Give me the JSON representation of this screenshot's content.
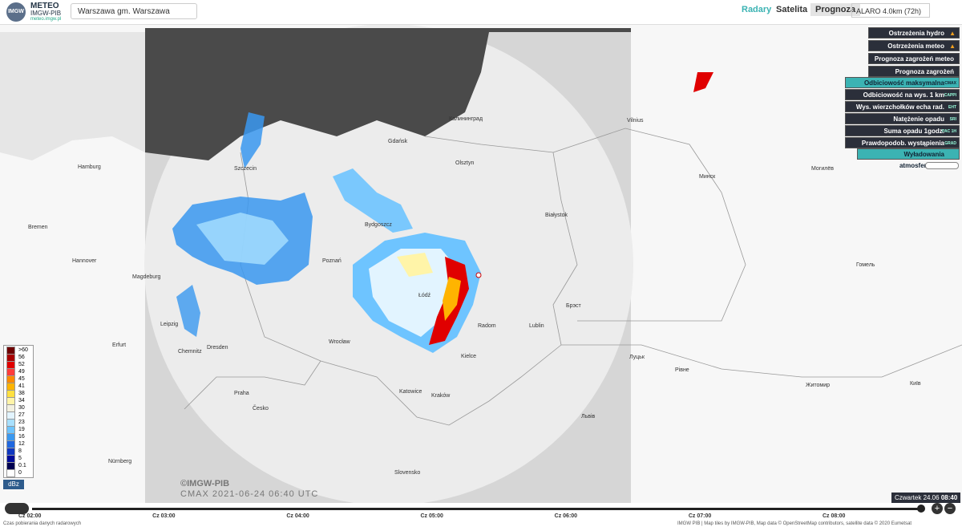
{
  "header": {
    "logo": "IMGW",
    "brand": "METEO",
    "org": "IMGW-PIB",
    "url": "meteo.imgw.pl",
    "search": "Warszawa gm. Warszawa",
    "nav": [
      "Radary",
      "Satelita",
      "Prognoza"
    ],
    "model": "ALARO 4.0km (72h)"
  },
  "warnings": [
    "Ostrzeżenia hydro",
    "Ostrzeżenia meteo",
    "Prognoza zagrożeń meteo",
    "Prognoza zagrożeń drogowych"
  ],
  "layers": [
    {
      "name": "Odbiciowość maksymalna",
      "code": "CMAX",
      "active": true
    },
    {
      "name": "Odbiciowość na wys. 1 km",
      "code": "CAPPI",
      "active": false
    },
    {
      "name": "Wys. wierzchołków echa rad.",
      "code": "EHT",
      "active": false
    },
    {
      "name": "Natężenie opadu",
      "code": "SRI",
      "active": false
    },
    {
      "name": "Suma opadu 1godz.",
      "code": "PAC 1H",
      "active": false
    },
    {
      "name": "Prawdopodob. wystąpienia gradu",
      "code": "GRAD",
      "active": false
    }
  ],
  "lightning": "Wyładowania atmosferyczne",
  "legend": {
    "unit": "dBz",
    "items": [
      {
        "label": ">60",
        "color": "#6e0000"
      },
      {
        "label": "56",
        "color": "#a80000"
      },
      {
        "label": "52",
        "color": "#e00000"
      },
      {
        "label": "49",
        "color": "#ff3c3c"
      },
      {
        "label": "45",
        "color": "#ff8a00"
      },
      {
        "label": "41",
        "color": "#ffb400"
      },
      {
        "label": "38",
        "color": "#ffe040"
      },
      {
        "label": "34",
        "color": "#fff4a8"
      },
      {
        "label": "30",
        "color": "#f2f0e0"
      },
      {
        "label": "27",
        "color": "#e2f4ff"
      },
      {
        "label": "23",
        "color": "#a8e0ff"
      },
      {
        "label": "19",
        "color": "#6ec4ff"
      },
      {
        "label": "16",
        "color": "#3a98f0"
      },
      {
        "label": "12",
        "color": "#2068e0"
      },
      {
        "label": "8",
        "color": "#1038c0"
      },
      {
        "label": "5",
        "color": "#000c9a"
      },
      {
        "label": "0.1",
        "color": "#000050"
      },
      {
        "label": "0",
        "color": "#ffffff"
      }
    ]
  },
  "watermark": {
    "org": "©IMGW-PIB",
    "product": "CMAX 2021-06-24 06:40 UTC"
  },
  "map_labels": [
    "Hamburg",
    "Bremen",
    "Hannover",
    "Magdeburg",
    "Leipzig",
    "Dresden",
    "Chemnitz",
    "Erfurt",
    "Nürnberg",
    "Praha",
    "Česko",
    "Szczecin",
    "Gdańsk",
    "Bydgoszcz",
    "Poznań",
    "Łódź",
    "Wrocław",
    "Katowice",
    "Kraków",
    "Kielce",
    "Radom",
    "Lublin",
    "Białystok",
    "Olsztyn",
    "Калининград",
    "Vilnius",
    "Минск",
    "Могилёв",
    "Гомель",
    "Брэст",
    "Луцьк",
    "Рівне",
    "Житомир",
    "Київ",
    "Львів",
    "Slovensko"
  ],
  "timeline": {
    "ticks": [
      "Cz 02:00",
      "Cz 03:00",
      "Cz 04:00",
      "Cz 05:00",
      "Cz 06:00",
      "Cz 07:00",
      "Cz 08:00"
    ],
    "day": "Czwartek 24.06",
    "time": "08:40"
  },
  "footer": {
    "left": "Czas pobierania danych radarowych",
    "right": "IMGW PIB | Map tiles by IMGW-PIB, Map data © OpenStreetMap contributors, satellite data © 2020 Eumetsat"
  }
}
